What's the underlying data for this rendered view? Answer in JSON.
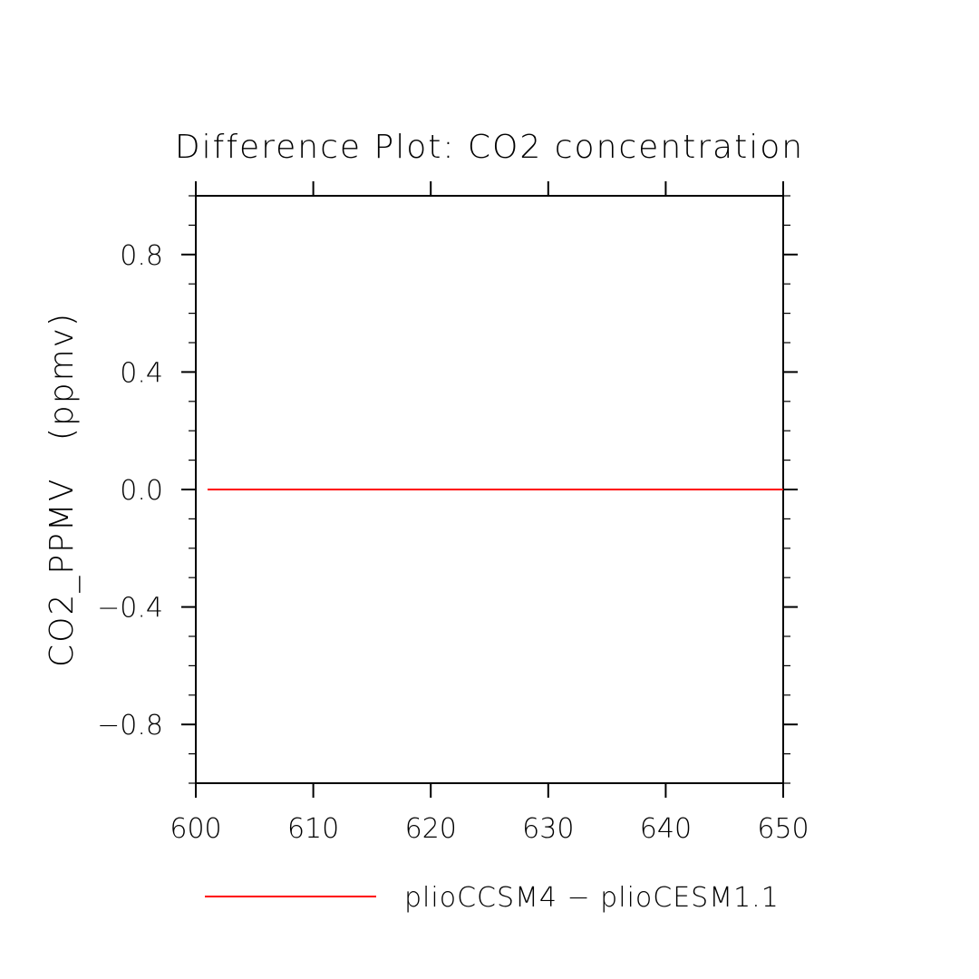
{
  "chart_data": {
    "type": "line",
    "title": "Difference Plot: CO2 concentration",
    "xlabel": "",
    "ylabel": "CO2_PPMV   (ppmv)",
    "xlim": [
      600,
      650
    ],
    "ylim": [
      -1.0,
      1.0
    ],
    "x_ticks": [
      600,
      610,
      620,
      630,
      640,
      650
    ],
    "x_tick_labels": [
      "600",
      "610",
      "620",
      "630",
      "640",
      "650"
    ],
    "y_ticks": [
      0.8,
      0.4,
      0.0,
      -0.4,
      -0.8
    ],
    "y_tick_labels": [
      "0.8",
      "0.4",
      "0.0",
      "−0.4",
      "−0.8"
    ],
    "grid": false,
    "legend_position": "bottom",
    "series": [
      {
        "name": "plioCCSM4 − plioCESM1.1",
        "color": "#ff0000",
        "x": [
          601,
          650
        ],
        "y": [
          0.0,
          0.0
        ]
      }
    ]
  }
}
